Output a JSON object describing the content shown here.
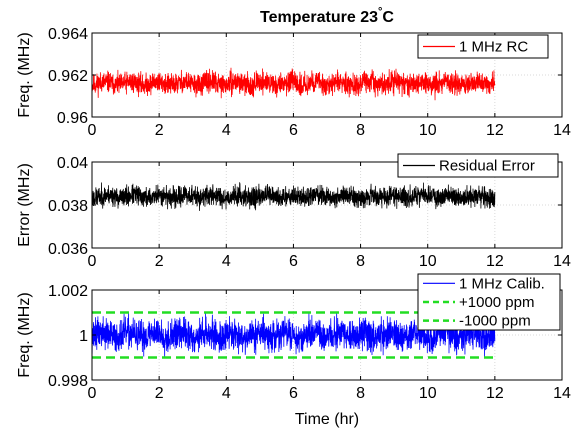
{
  "chart_data": [
    {
      "type": "line",
      "title_main": "Temperature 23",
      "title_sup": "°",
      "title_unit": "C",
      "ylabel": "Freq. (MHz)",
      "xlabel": "",
      "xlim": [
        0,
        14
      ],
      "xticks": [
        0,
        2,
        4,
        6,
        8,
        10,
        12,
        14
      ],
      "xtick_labels": [
        "0",
        "2",
        "4",
        "6",
        "8",
        "10",
        "12",
        "14"
      ],
      "ylim": [
        0.96,
        0.964
      ],
      "yticks": [
        0.96,
        0.962,
        0.964
      ],
      "ytick_labels": [
        "0.96",
        "0.962",
        "0.964"
      ],
      "grid": true,
      "legend_position": "top-right",
      "series": [
        {
          "name": "1 MHz RC",
          "color": "#ff0000",
          "style": "solid",
          "kind": "noise",
          "x_range": [
            0,
            12
          ],
          "center": 0.9616,
          "spread": 0.0006,
          "seed": 11
        }
      ]
    },
    {
      "type": "line",
      "ylabel": "Error (MHz)",
      "xlabel": "",
      "xlim": [
        0,
        14
      ],
      "xticks": [
        0,
        2,
        4,
        6,
        8,
        10,
        12,
        14
      ],
      "xtick_labels": [
        "0",
        "2",
        "4",
        "6",
        "8",
        "10",
        "12",
        "14"
      ],
      "ylim": [
        0.036,
        0.04
      ],
      "yticks": [
        0.036,
        0.038,
        0.04
      ],
      "ytick_labels": [
        "0.036",
        "0.038",
        "0.04"
      ],
      "grid": true,
      "legend_position": "top-right",
      "series": [
        {
          "name": "Residual Error",
          "color": "#000000",
          "style": "solid",
          "kind": "noise",
          "x_range": [
            0,
            12
          ],
          "center": 0.0384,
          "spread": 0.00055,
          "seed": 23
        }
      ]
    },
    {
      "type": "line",
      "ylabel": "Freq. (MHz)",
      "xlabel": "Time (hr)",
      "xlim": [
        0,
        14
      ],
      "xticks": [
        0,
        2,
        4,
        6,
        8,
        10,
        12,
        14
      ],
      "xtick_labels": [
        "0",
        "2",
        "4",
        "6",
        "8",
        "10",
        "12",
        "14"
      ],
      "ylim": [
        0.998,
        1.002
      ],
      "yticks": [
        0.998,
        1,
        1.002
      ],
      "ytick_labels": [
        "0.998",
        "1",
        "1.002"
      ],
      "grid": true,
      "legend_position": "top-right",
      "series": [
        {
          "name": "1 MHz Calib.",
          "color": "#0000ff",
          "style": "solid",
          "kind": "noise",
          "x_range": [
            0,
            12
          ],
          "center": 1.0,
          "spread": 0.00082,
          "seed": 37
        },
        {
          "name": "+1000 ppm",
          "color": "#22dd22",
          "style": "dashed",
          "kind": "constant",
          "x": [
            0,
            12
          ],
          "y": [
            1.001,
            1.001
          ]
        },
        {
          "name": "-1000 ppm",
          "color": "#22dd22",
          "style": "dashed",
          "kind": "constant",
          "x": [
            0,
            12
          ],
          "y": [
            0.999,
            0.999
          ]
        }
      ]
    }
  ]
}
